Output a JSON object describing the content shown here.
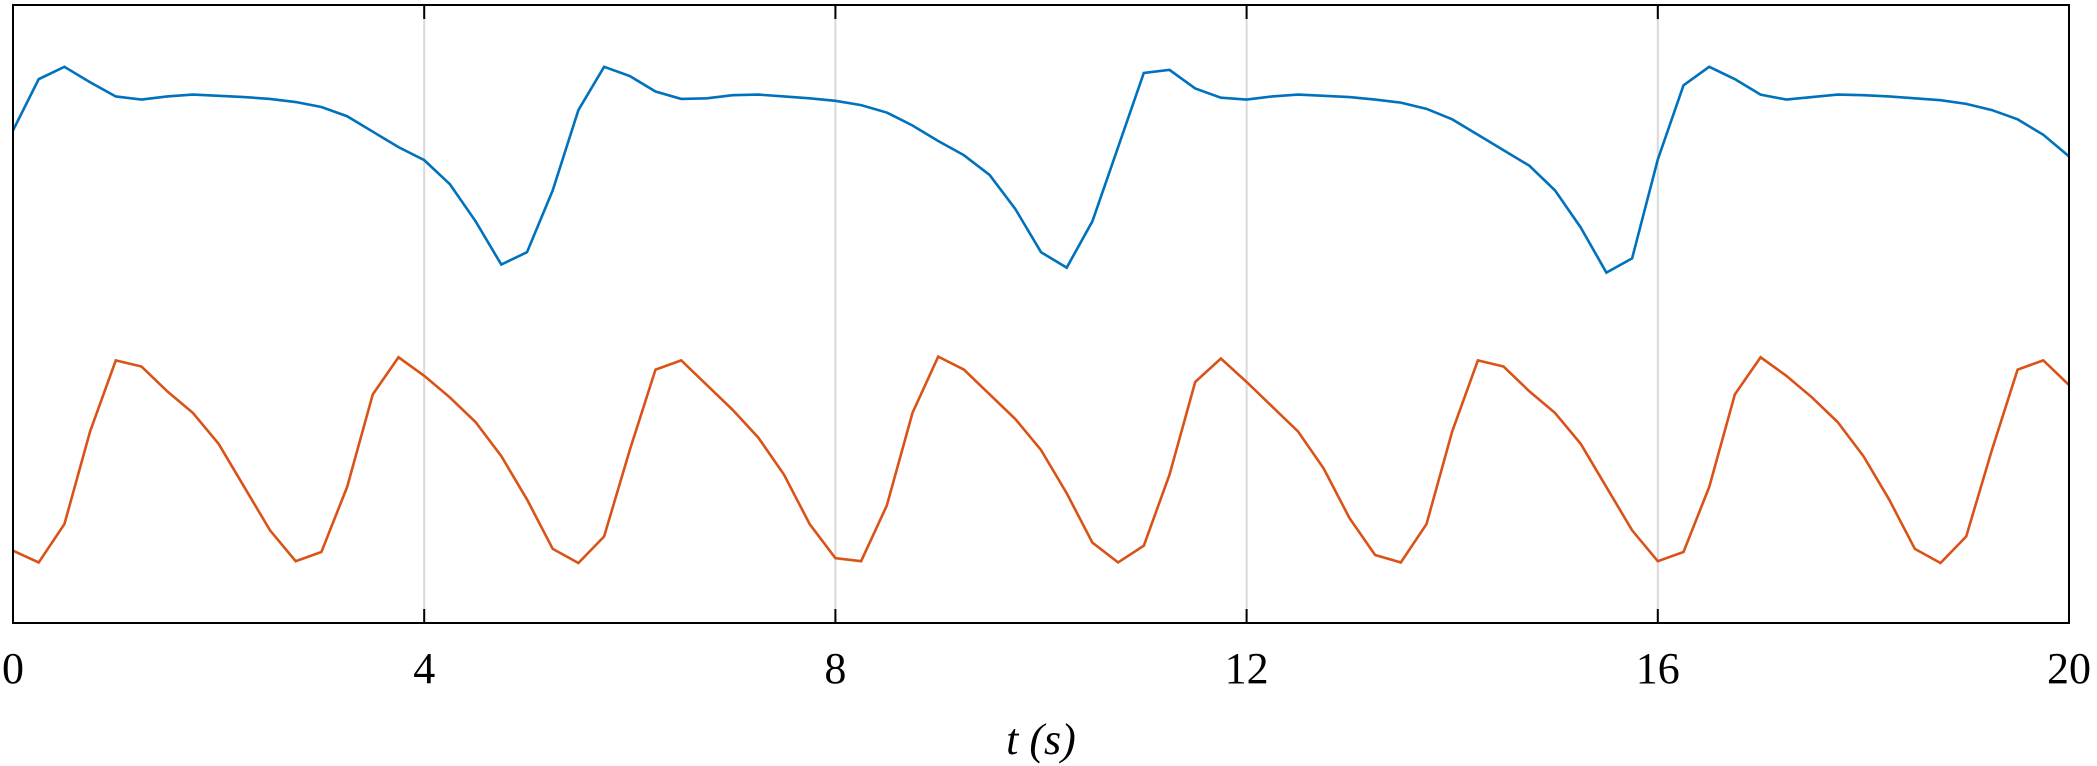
{
  "chart_data": {
    "type": "line",
    "xlabel": "t  (s)",
    "x": [
      0,
      0.25,
      0.5,
      0.75,
      1,
      1.25,
      1.5,
      1.75,
      2,
      2.25,
      2.5,
      2.75,
      3,
      3.25,
      3.5,
      3.75,
      4,
      4.25,
      4.5,
      4.75,
      5,
      5.25,
      5.5,
      5.75,
      6,
      6.25,
      6.5,
      6.75,
      7,
      7.25,
      7.5,
      7.75,
      8,
      8.25,
      8.5,
      8.75,
      9,
      9.25,
      9.5,
      9.75,
      10,
      10.25,
      10.5,
      10.75,
      11,
      11.25,
      11.5,
      11.75,
      12,
      12.25,
      12.5,
      12.75,
      13,
      13.25,
      13.5,
      13.75,
      14,
      14.25,
      14.5,
      14.75,
      15,
      15.25,
      15.5,
      15.75,
      16,
      16.25,
      16.5,
      16.75,
      17,
      17.25,
      17.5,
      17.75,
      18,
      18.25,
      18.5,
      18.75,
      19,
      19.25,
      19.5,
      19.75,
      20
    ],
    "series": [
      {
        "color": "#0072bd",
        "values": [
          0.797,
          0.88,
          0.9,
          0.875,
          0.852,
          0.847,
          0.852,
          0.855,
          0.853,
          0.851,
          0.848,
          0.843,
          0.835,
          0.82,
          0.795,
          0.77,
          0.749,
          0.71,
          0.65,
          0.58,
          0.6,
          0.7,
          0.83,
          0.9,
          0.885,
          0.86,
          0.848,
          0.849,
          0.854,
          0.855,
          0.852,
          0.849,
          0.845,
          0.838,
          0.826,
          0.805,
          0.78,
          0.757,
          0.725,
          0.67,
          0.6,
          0.575,
          0.65,
          0.77,
          0.89,
          0.895,
          0.865,
          0.85,
          0.847,
          0.852,
          0.855,
          0.853,
          0.851,
          0.847,
          0.842,
          0.832,
          0.815,
          0.79,
          0.765,
          0.74,
          0.7,
          0.64,
          0.567,
          0.59,
          0.75,
          0.87,
          0.9,
          0.88,
          0.855,
          0.847,
          0.851,
          0.855,
          0.854,
          0.852,
          0.849,
          0.846,
          0.84,
          0.83,
          0.815,
          0.79,
          0.755
        ]
      },
      {
        "color": "#d95319",
        "values": [
          0.117,
          0.098,
          0.16,
          0.31,
          0.425,
          0.415,
          0.375,
          0.34,
          0.29,
          0.22,
          0.15,
          0.1,
          0.115,
          0.22,
          0.37,
          0.43,
          0.4,
          0.365,
          0.325,
          0.27,
          0.2,
          0.12,
          0.097,
          0.14,
          0.28,
          0.41,
          0.425,
          0.385,
          0.345,
          0.3,
          0.24,
          0.16,
          0.105,
          0.1,
          0.19,
          0.34,
          0.431,
          0.41,
          0.37,
          0.33,
          0.28,
          0.21,
          0.13,
          0.098,
          0.125,
          0.24,
          0.39,
          0.428,
          0.39,
          0.35,
          0.31,
          0.25,
          0.17,
          0.11,
          0.098,
          0.16,
          0.31,
          0.425,
          0.415,
          0.375,
          0.34,
          0.29,
          0.22,
          0.15,
          0.1,
          0.115,
          0.22,
          0.37,
          0.43,
          0.4,
          0.365,
          0.325,
          0.27,
          0.2,
          0.12,
          0.097,
          0.14,
          0.28,
          0.41,
          0.425,
          0.385
        ]
      }
    ],
    "xlim": [
      0,
      20
    ],
    "xticks": [
      0,
      4,
      8,
      12,
      16,
      20
    ],
    "ylim": [
      0,
      1
    ],
    "grid": true
  }
}
